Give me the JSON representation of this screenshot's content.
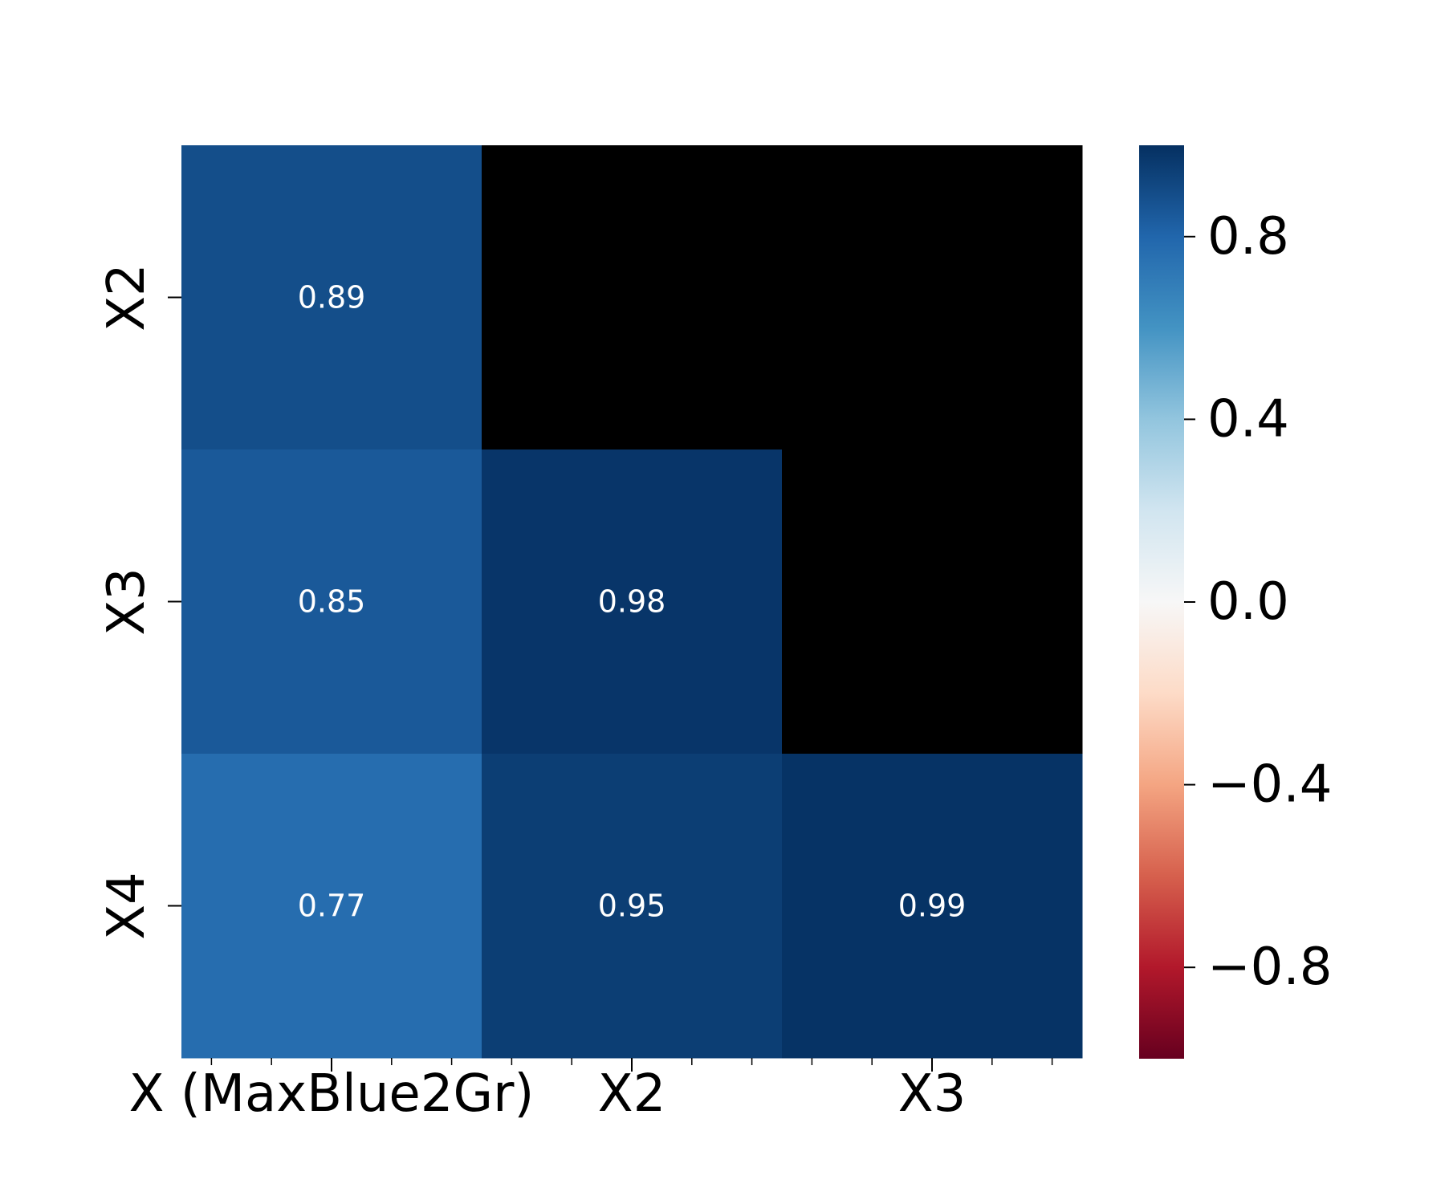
{
  "chart_data": {
    "type": "heatmap",
    "title": "",
    "xlabel": "",
    "ylabel": "",
    "x_categories": [
      "X (MaxBlue2Gr)",
      "X2",
      "X3"
    ],
    "y_categories": [
      "X2",
      "X3",
      "X4"
    ],
    "values": [
      [
        0.89,
        null,
        null
      ],
      [
        0.85,
        0.98,
        null
      ],
      [
        0.77,
        0.95,
        0.99
      ]
    ],
    "cell_labels": [
      [
        "0.89",
        "",
        ""
      ],
      [
        "0.85",
        "0.98",
        ""
      ],
      [
        "0.77",
        "0.95",
        "0.99"
      ]
    ],
    "masked_color": "#000000",
    "colormap": "RdBu",
    "vmin": -1,
    "vmax": 1,
    "colorbar": {
      "ticks": [
        0.8,
        0.4,
        0.0,
        -0.4,
        -0.8
      ],
      "tick_labels": [
        "0.8",
        "0.4",
        "0.0",
        "−0.4",
        "−0.8"
      ],
      "placement": "right"
    },
    "grid": false
  }
}
